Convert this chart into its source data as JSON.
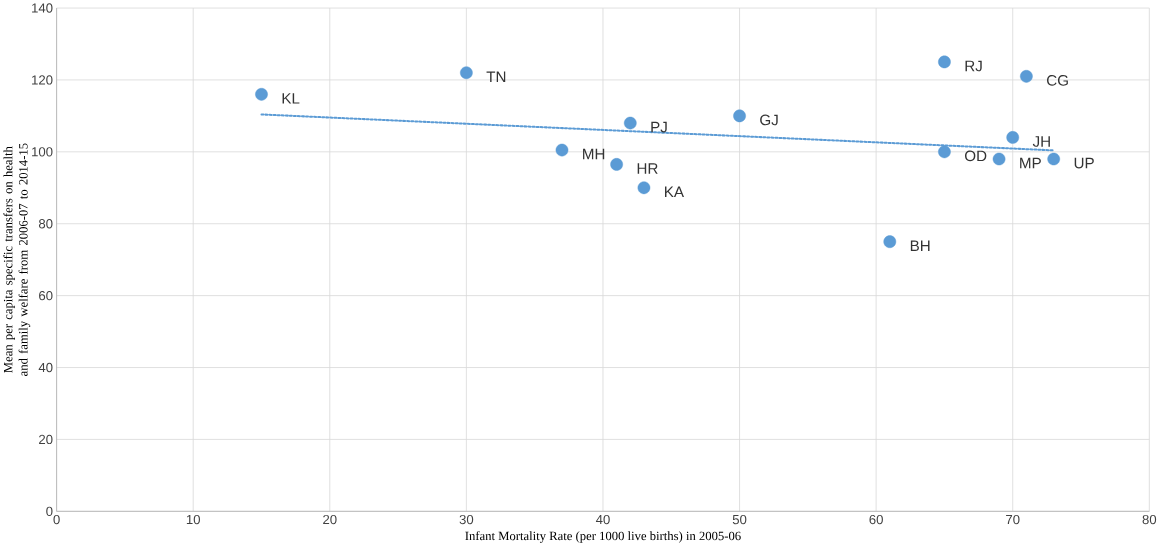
{
  "chart_data": {
    "type": "scatter",
    "xlabel": "Infant Mortality Rate (per 1000 live births) in 2005-06",
    "ylabel": "Mean per capita specific transfers on health and family welfare from 2006-07 to 2014-15",
    "xlim": [
      0,
      80
    ],
    "xticks": [
      0,
      10,
      20,
      30,
      40,
      50,
      60,
      70,
      80
    ],
    "ylim": [
      0,
      140
    ],
    "yticks": [
      0,
      20,
      40,
      60,
      80,
      100,
      120,
      140
    ],
    "grid": true,
    "series": [
      {
        "color": "#5b9bd5",
        "marker": "circle",
        "x": [
          15,
          30,
          42,
          37,
          41,
          43,
          50,
          61,
          65,
          65,
          71,
          69,
          73,
          70
        ],
        "values": [
          116,
          122,
          108,
          100.5,
          96.5,
          90,
          110,
          75,
          125,
          100,
          121,
          98,
          98,
          104
        ]
      },
      {
        "type": "line",
        "color": "#5b9bd5",
        "line_style": "dotted",
        "marker": "none",
        "x": [
          15,
          73
        ],
        "values": [
          110.4,
          100.4
        ]
      }
    ],
    "annotations": [
      {
        "text": "KL",
        "x": 15,
        "y": 116
      },
      {
        "text": "TN",
        "x": 30,
        "y": 122
      },
      {
        "text": "PJ",
        "x": 42,
        "y": 108
      },
      {
        "text": "MH",
        "x": 37,
        "y": 100.5
      },
      {
        "text": "HR",
        "x": 41,
        "y": 96.5
      },
      {
        "text": "KA",
        "x": 43,
        "y": 90
      },
      {
        "text": "GJ",
        "x": 50,
        "y": 110
      },
      {
        "text": "BH",
        "x": 61,
        "y": 75
      },
      {
        "text": "RJ",
        "x": 65,
        "y": 125
      },
      {
        "text": "OD",
        "x": 65,
        "y": 100
      },
      {
        "text": "CG",
        "x": 71,
        "y": 121
      },
      {
        "text": "MP",
        "x": 69,
        "y": 98
      },
      {
        "text": "UP",
        "x": 73,
        "y": 98
      },
      {
        "text": "JH",
        "x": 70,
        "y": 104
      }
    ]
  }
}
